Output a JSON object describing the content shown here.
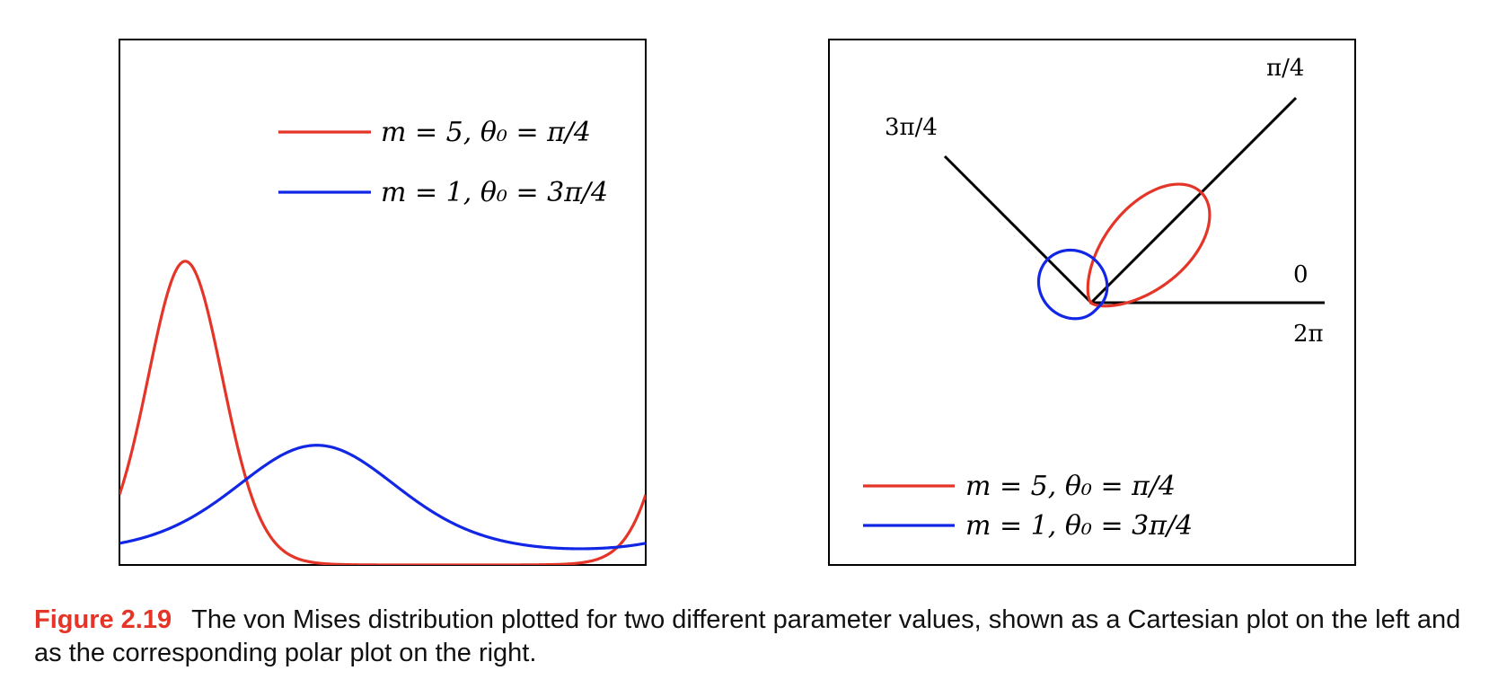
{
  "colors": {
    "red": "#e53528",
    "blue": "#1227e5",
    "axis": "#000000"
  },
  "chart_data": [
    {
      "type": "line",
      "subtype": "cartesian",
      "x_domain": [
        0,
        6.283185307
      ],
      "y_domain": [
        0,
        1.5
      ],
      "series": [
        {
          "color": "red",
          "label": "m = 5,  θ₀ = π/4",
          "m": 5,
          "theta0": 0.785398163
        },
        {
          "color": "blue",
          "label": "m = 1,  θ₀ = 3π/4",
          "m": 1,
          "theta0": 2.35619449
        }
      ]
    },
    {
      "type": "line",
      "subtype": "polar",
      "angle_labels": {
        "pi_4": "π/4",
        "three_pi_4": "3π/4",
        "zero": "0",
        "two_pi": "2π"
      },
      "series": [
        {
          "color": "red",
          "label": "m = 5,  θ₀ = π/4",
          "m": 5,
          "theta0": 0.785398163
        },
        {
          "color": "blue",
          "label": "m = 1,  θ₀ = 3π/4",
          "m": 1,
          "theta0": 2.35619449
        }
      ]
    }
  ],
  "caption": {
    "label": "Figure 2.19",
    "text": "The von Mises distribution plotted for two different parameter values, shown as a Cartesian plot on the left and as the corresponding polar plot on the right."
  }
}
